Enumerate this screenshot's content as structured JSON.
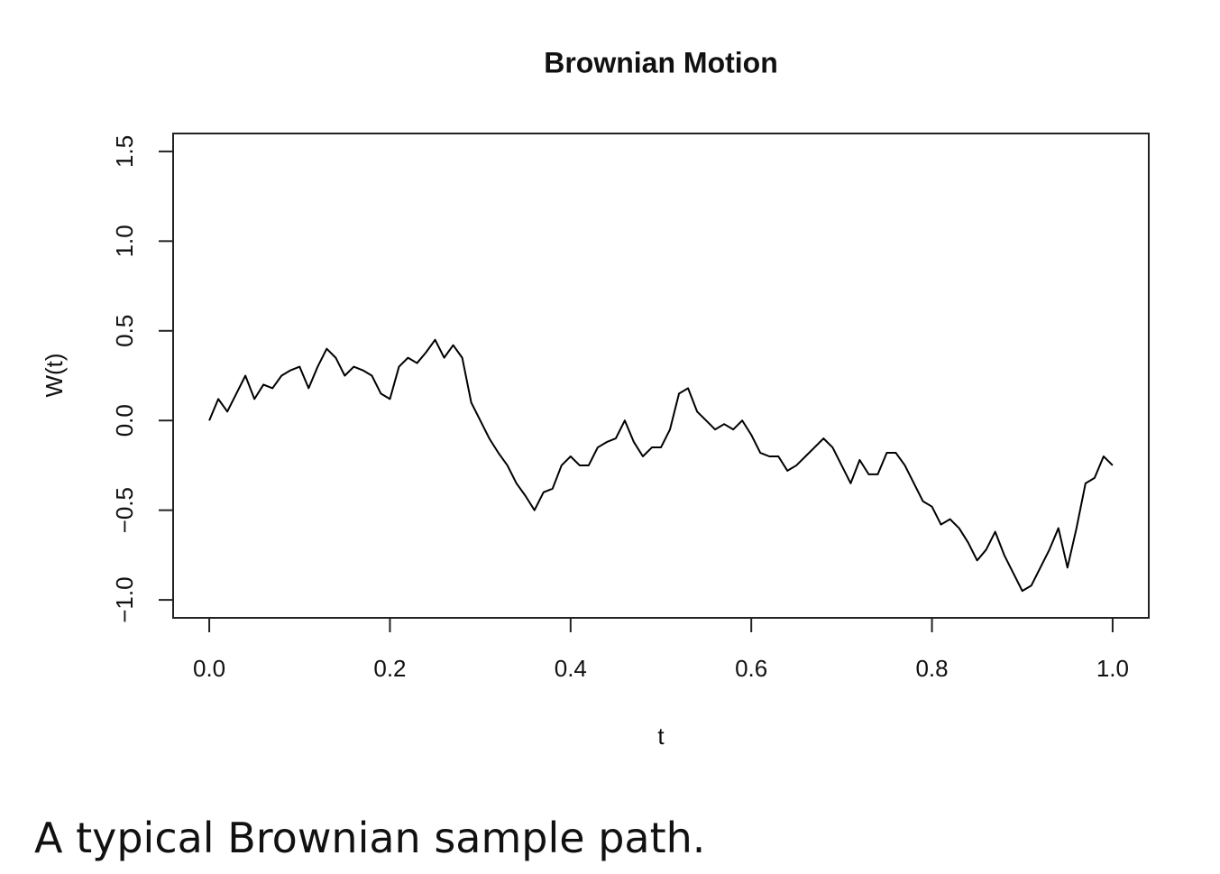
{
  "chart_data": {
    "type": "line",
    "title": "Brownian Motion",
    "xlabel": "t",
    "ylabel": "W(t)",
    "x": [
      0,
      0.01,
      0.02,
      0.03,
      0.04,
      0.05,
      0.06,
      0.07,
      0.08,
      0.09,
      0.1,
      0.11,
      0.12,
      0.13,
      0.14,
      0.15,
      0.16,
      0.17,
      0.18,
      0.19,
      0.2,
      0.21,
      0.22,
      0.23,
      0.24,
      0.25,
      0.26,
      0.27,
      0.28,
      0.29,
      0.3,
      0.31,
      0.32,
      0.33,
      0.34,
      0.35,
      0.36,
      0.37,
      0.38,
      0.39,
      0.4,
      0.41,
      0.42,
      0.43,
      0.44,
      0.45,
      0.46,
      0.47,
      0.48,
      0.49,
      0.5,
      0.51,
      0.52,
      0.53,
      0.54,
      0.55,
      0.56,
      0.57,
      0.58,
      0.59,
      0.6,
      0.61,
      0.62,
      0.63,
      0.64,
      0.65,
      0.66,
      0.67,
      0.68,
      0.69,
      0.7,
      0.71,
      0.72,
      0.73,
      0.74,
      0.75,
      0.76,
      0.77,
      0.78,
      0.79,
      0.8,
      0.81,
      0.82,
      0.83,
      0.84,
      0.85,
      0.86,
      0.87,
      0.88,
      0.89,
      0.9,
      0.91,
      0.92,
      0.93,
      0.94,
      0.95,
      0.96,
      0.97,
      0.98,
      0.99,
      1.0
    ],
    "series": [
      {
        "name": "W(t)",
        "color": "#000000",
        "values": [
          0,
          0.12,
          0.05,
          0.15,
          0.25,
          0.12,
          0.2,
          0.18,
          0.25,
          0.28,
          0.3,
          0.18,
          0.3,
          0.4,
          0.35,
          0.25,
          0.3,
          0.28,
          0.25,
          0.15,
          0.12,
          0.3,
          0.35,
          0.32,
          0.38,
          0.45,
          0.35,
          0.42,
          0.35,
          0.1,
          0.0,
          -0.1,
          -0.18,
          -0.25,
          -0.35,
          -0.42,
          -0.5,
          -0.4,
          -0.38,
          -0.25,
          -0.2,
          -0.25,
          -0.25,
          -0.15,
          -0.12,
          -0.1,
          0.0,
          -0.12,
          -0.2,
          -0.15,
          -0.15,
          -0.05,
          0.15,
          0.18,
          0.05,
          0.0,
          -0.05,
          -0.02,
          -0.05,
          0.0,
          -0.08,
          -0.18,
          -0.2,
          -0.2,
          -0.28,
          -0.25,
          -0.2,
          -0.15,
          -0.1,
          -0.15,
          -0.25,
          -0.35,
          -0.22,
          -0.3,
          -0.3,
          -0.18,
          -0.18,
          -0.25,
          -0.35,
          -0.45,
          -0.48,
          -0.58,
          -0.55,
          -0.6,
          -0.68,
          -0.78,
          -0.72,
          -0.62,
          -0.75,
          -0.85,
          -0.95,
          -0.92,
          -0.82,
          -0.72,
          -0.6,
          -0.82,
          -0.6,
          -0.35,
          -0.32,
          -0.2,
          -0.25
        ]
      }
    ],
    "xlim": [
      -0.04,
      1.04
    ],
    "xticks": [
      {
        "value": 0,
        "label": "0.0"
      },
      0.2,
      0.4,
      0.6,
      0.8,
      {
        "value": 1,
        "label": "1.0"
      }
    ],
    "ylim": [
      -1.1,
      1.6
    ],
    "yticks": [
      {
        "value": -1,
        "label": "−1.0"
      },
      {
        "value": -0.5,
        "label": "−0.5"
      },
      {
        "value": 0,
        "label": "0.0"
      },
      0.5,
      {
        "value": 1,
        "label": "1.0"
      },
      1.5
    ]
  },
  "caption": "A typical Brownian sample path."
}
